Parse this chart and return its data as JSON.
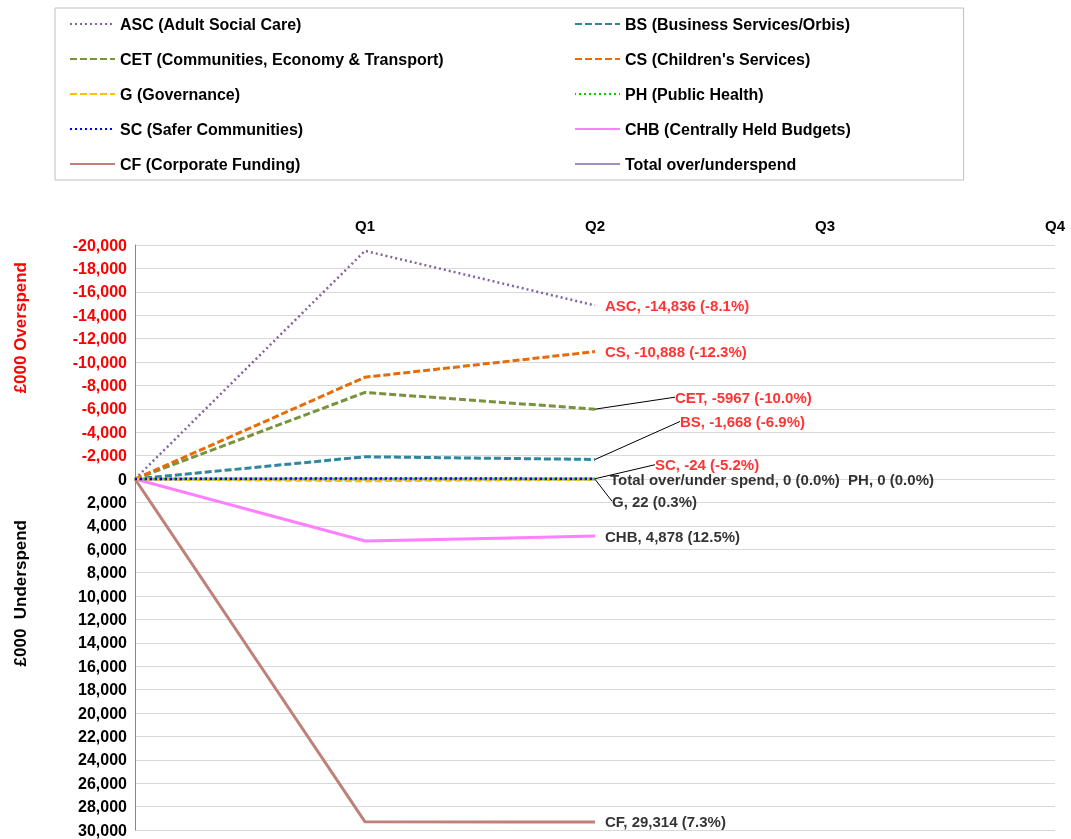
{
  "chart_data": {
    "type": "line",
    "categories": [
      null,
      "Q1",
      "Q2",
      "Q3",
      "Q4"
    ],
    "ylabel": "£000  Underspend",
    "ylim": [
      30000,
      -20000
    ],
    "yticks": [
      {
        "value": -20000,
        "label": "-20,000"
      },
      {
        "value": -18000,
        "label": "-18,000"
      },
      {
        "value": -16000,
        "label": "-16,000"
      },
      {
        "value": -14000,
        "label": "-14,000"
      },
      {
        "value": -12000,
        "label": "-12,000"
      },
      {
        "value": -10000,
        "label": "-10,000"
      },
      {
        "value": -8000,
        "label": "-8,000"
      },
      {
        "value": -6000,
        "label": "-6,000"
      },
      {
        "value": -4000,
        "label": "-4,000"
      },
      {
        "value": -2000,
        "label": "-2,000"
      },
      0,
      {
        "value": 2000,
        "label": "2,000"
      },
      {
        "value": 4000,
        "label": "4,000"
      },
      {
        "value": 6000,
        "label": "6,000"
      },
      {
        "value": 8000,
        "label": "8,000"
      },
      {
        "value": 10000,
        "label": "10,000"
      },
      {
        "value": 12000,
        "label": "12,000"
      },
      {
        "value": 14000,
        "label": "14,000"
      },
      {
        "value": 16000,
        "label": "16,000"
      },
      {
        "value": 18000,
        "label": "18,000"
      },
      {
        "value": 20000,
        "label": "20,000"
      },
      {
        "value": 22000,
        "label": "22,000"
      },
      {
        "value": 24000,
        "label": "24,000"
      },
      {
        "value": 26000,
        "label": "26,000"
      },
      {
        "value": 28000,
        "label": "28,000"
      },
      {
        "value": 30000,
        "label": "30,000"
      }
    ],
    "grid": "y",
    "legend": "top",
    "marker": "none",
    "series": [
      {
        "name": "ASC (Adult Social Care)",
        "color": "#8064a2",
        "line_style": "dotted",
        "values": [
          0,
          -19500,
          -14836,
          null,
          null
        ]
      },
      {
        "name": "BS (Business Services/Orbis)",
        "color": "#31859c",
        "line_style": "dashed",
        "values": [
          0,
          -1900,
          -1668,
          null,
          null
        ]
      },
      {
        "name": "CET (Communities, Economy & Transport)",
        "color": "#77933c",
        "line_style": "dashed",
        "values": [
          0,
          -7400,
          -5967,
          null,
          null
        ]
      },
      {
        "name": "CS (Children's Services)",
        "color": "#e46c0a",
        "line_style": "dashed",
        "values": [
          0,
          -8700,
          -10888,
          null,
          null
        ]
      },
      {
        "name": "G (Governance)",
        "color": "#ffc000",
        "line_style": "dashed",
        "values": [
          0,
          150,
          22,
          null,
          null
        ]
      },
      {
        "name": "PH (Public Health)",
        "color": "#00cc00",
        "line_style": "dotted",
        "values": [
          0,
          0,
          0,
          null,
          null
        ]
      },
      {
        "name": "SC (Safer Communities)",
        "color": "#0000ff",
        "line_style": "dotted",
        "values": [
          0,
          -50,
          -24,
          null,
          null
        ]
      },
      {
        "name": "CHB (Centrally Held Budgets)",
        "color": "#ff80ff",
        "line_style": "solid",
        "values": [
          0,
          5300,
          4878,
          null,
          null
        ]
      },
      {
        "name": "CF (Corporate Funding)",
        "color": "#c0807a",
        "line_style": "solid",
        "values": [
          0,
          29300,
          29314,
          null,
          null
        ]
      },
      {
        "name": "Total over/underspend",
        "color": "#9f8fbf",
        "line_style": "solid",
        "values": [
          0,
          0,
          0,
          null,
          null
        ]
      }
    ],
    "annotations": [
      "£000 Overspend",
      {
        "text": "ASC, -14,836 (-8.1%)",
        "x": "Q2",
        "y": -14836
      },
      {
        "text": "CS, -10,888 (-12.3%)",
        "x": "Q2",
        "y": -10888
      },
      {
        "text": "CET, -5967 (-10.0%)",
        "x": "Q2",
        "y": -5967
      },
      {
        "text": "BS, -1,668 (-6.9%)",
        "x": "Q2",
        "y": -1668
      },
      {
        "text": "SC, -24 (-5.2%)",
        "x": "Q2",
        "y": -24
      },
      {
        "text": "Total over/under spend, 0 (0.0%)  PH, 0 (0.0%)",
        "x": "Q2",
        "y": 0
      },
      {
        "text": "G, 22 (0.3%)",
        "x": "Q2",
        "y": 22
      },
      {
        "text": "CHB, 4,878 (12.5%)",
        "x": "Q2",
        "y": 4878
      },
      {
        "text": "CF, 29,314 (7.3%)",
        "x": "Q2",
        "y": 29314
      }
    ]
  }
}
